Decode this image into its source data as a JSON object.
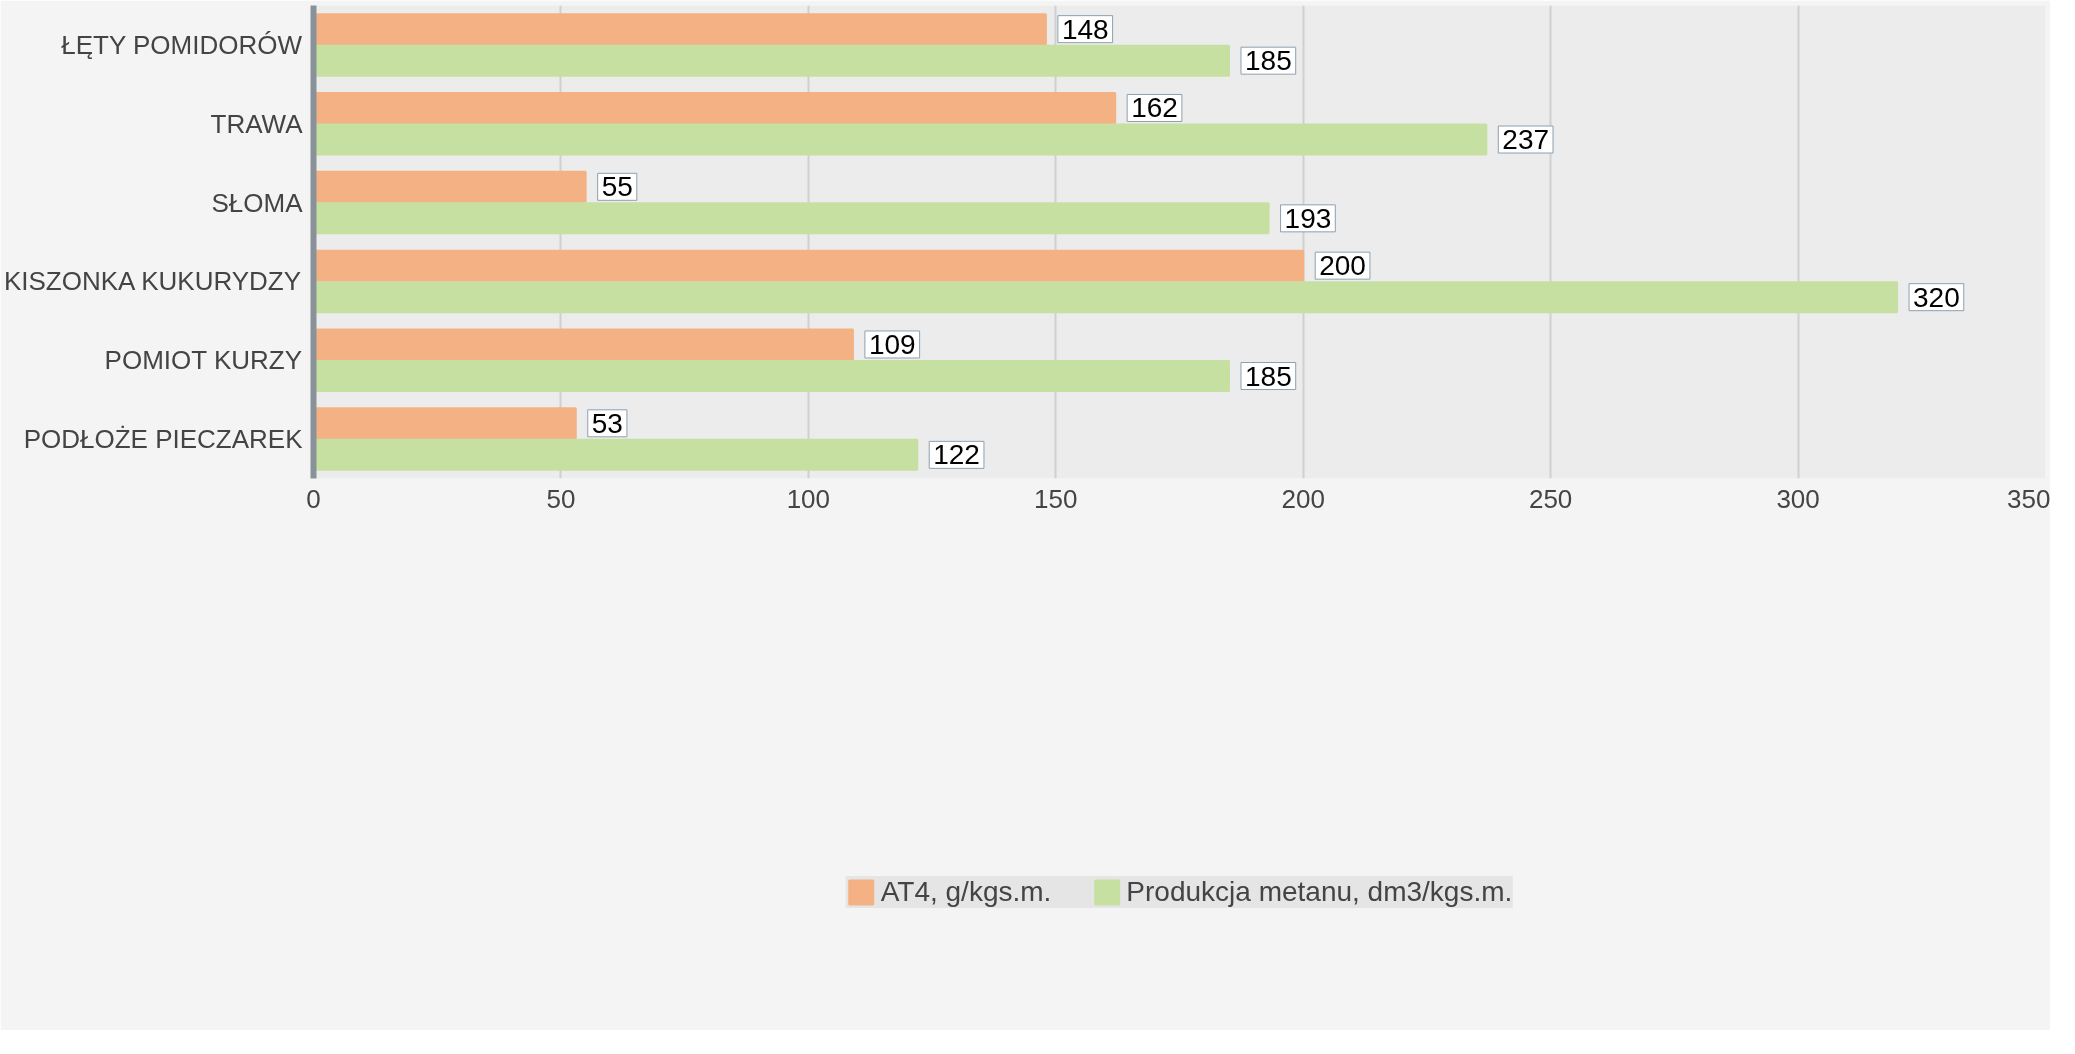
{
  "chart_data": {
    "type": "bar",
    "orientation": "horizontal",
    "categories": [
      "ŁĘTY POMIDORÓW",
      "TRAWA",
      "SŁOMA",
      "KISZONKA KUKURYDZY",
      "POMIOT KURZY",
      "PODŁOŻE PIECZAREK"
    ],
    "series": [
      {
        "name": "AT4, g/kgs.m.",
        "color": "#f4b183",
        "values": [
          148,
          162,
          55,
          200,
          109,
          53
        ]
      },
      {
        "name": "Produkcja metanu, dm3/kgs.m.",
        "color": "#c5e0a0",
        "values": [
          185,
          237,
          193,
          320,
          185,
          122
        ]
      }
    ],
    "xlim": [
      0,
      350
    ],
    "xticks": [
      0,
      50,
      100,
      150,
      200,
      250,
      300,
      350
    ],
    "grid": "x",
    "legend": "bottom",
    "data_labels": true
  }
}
